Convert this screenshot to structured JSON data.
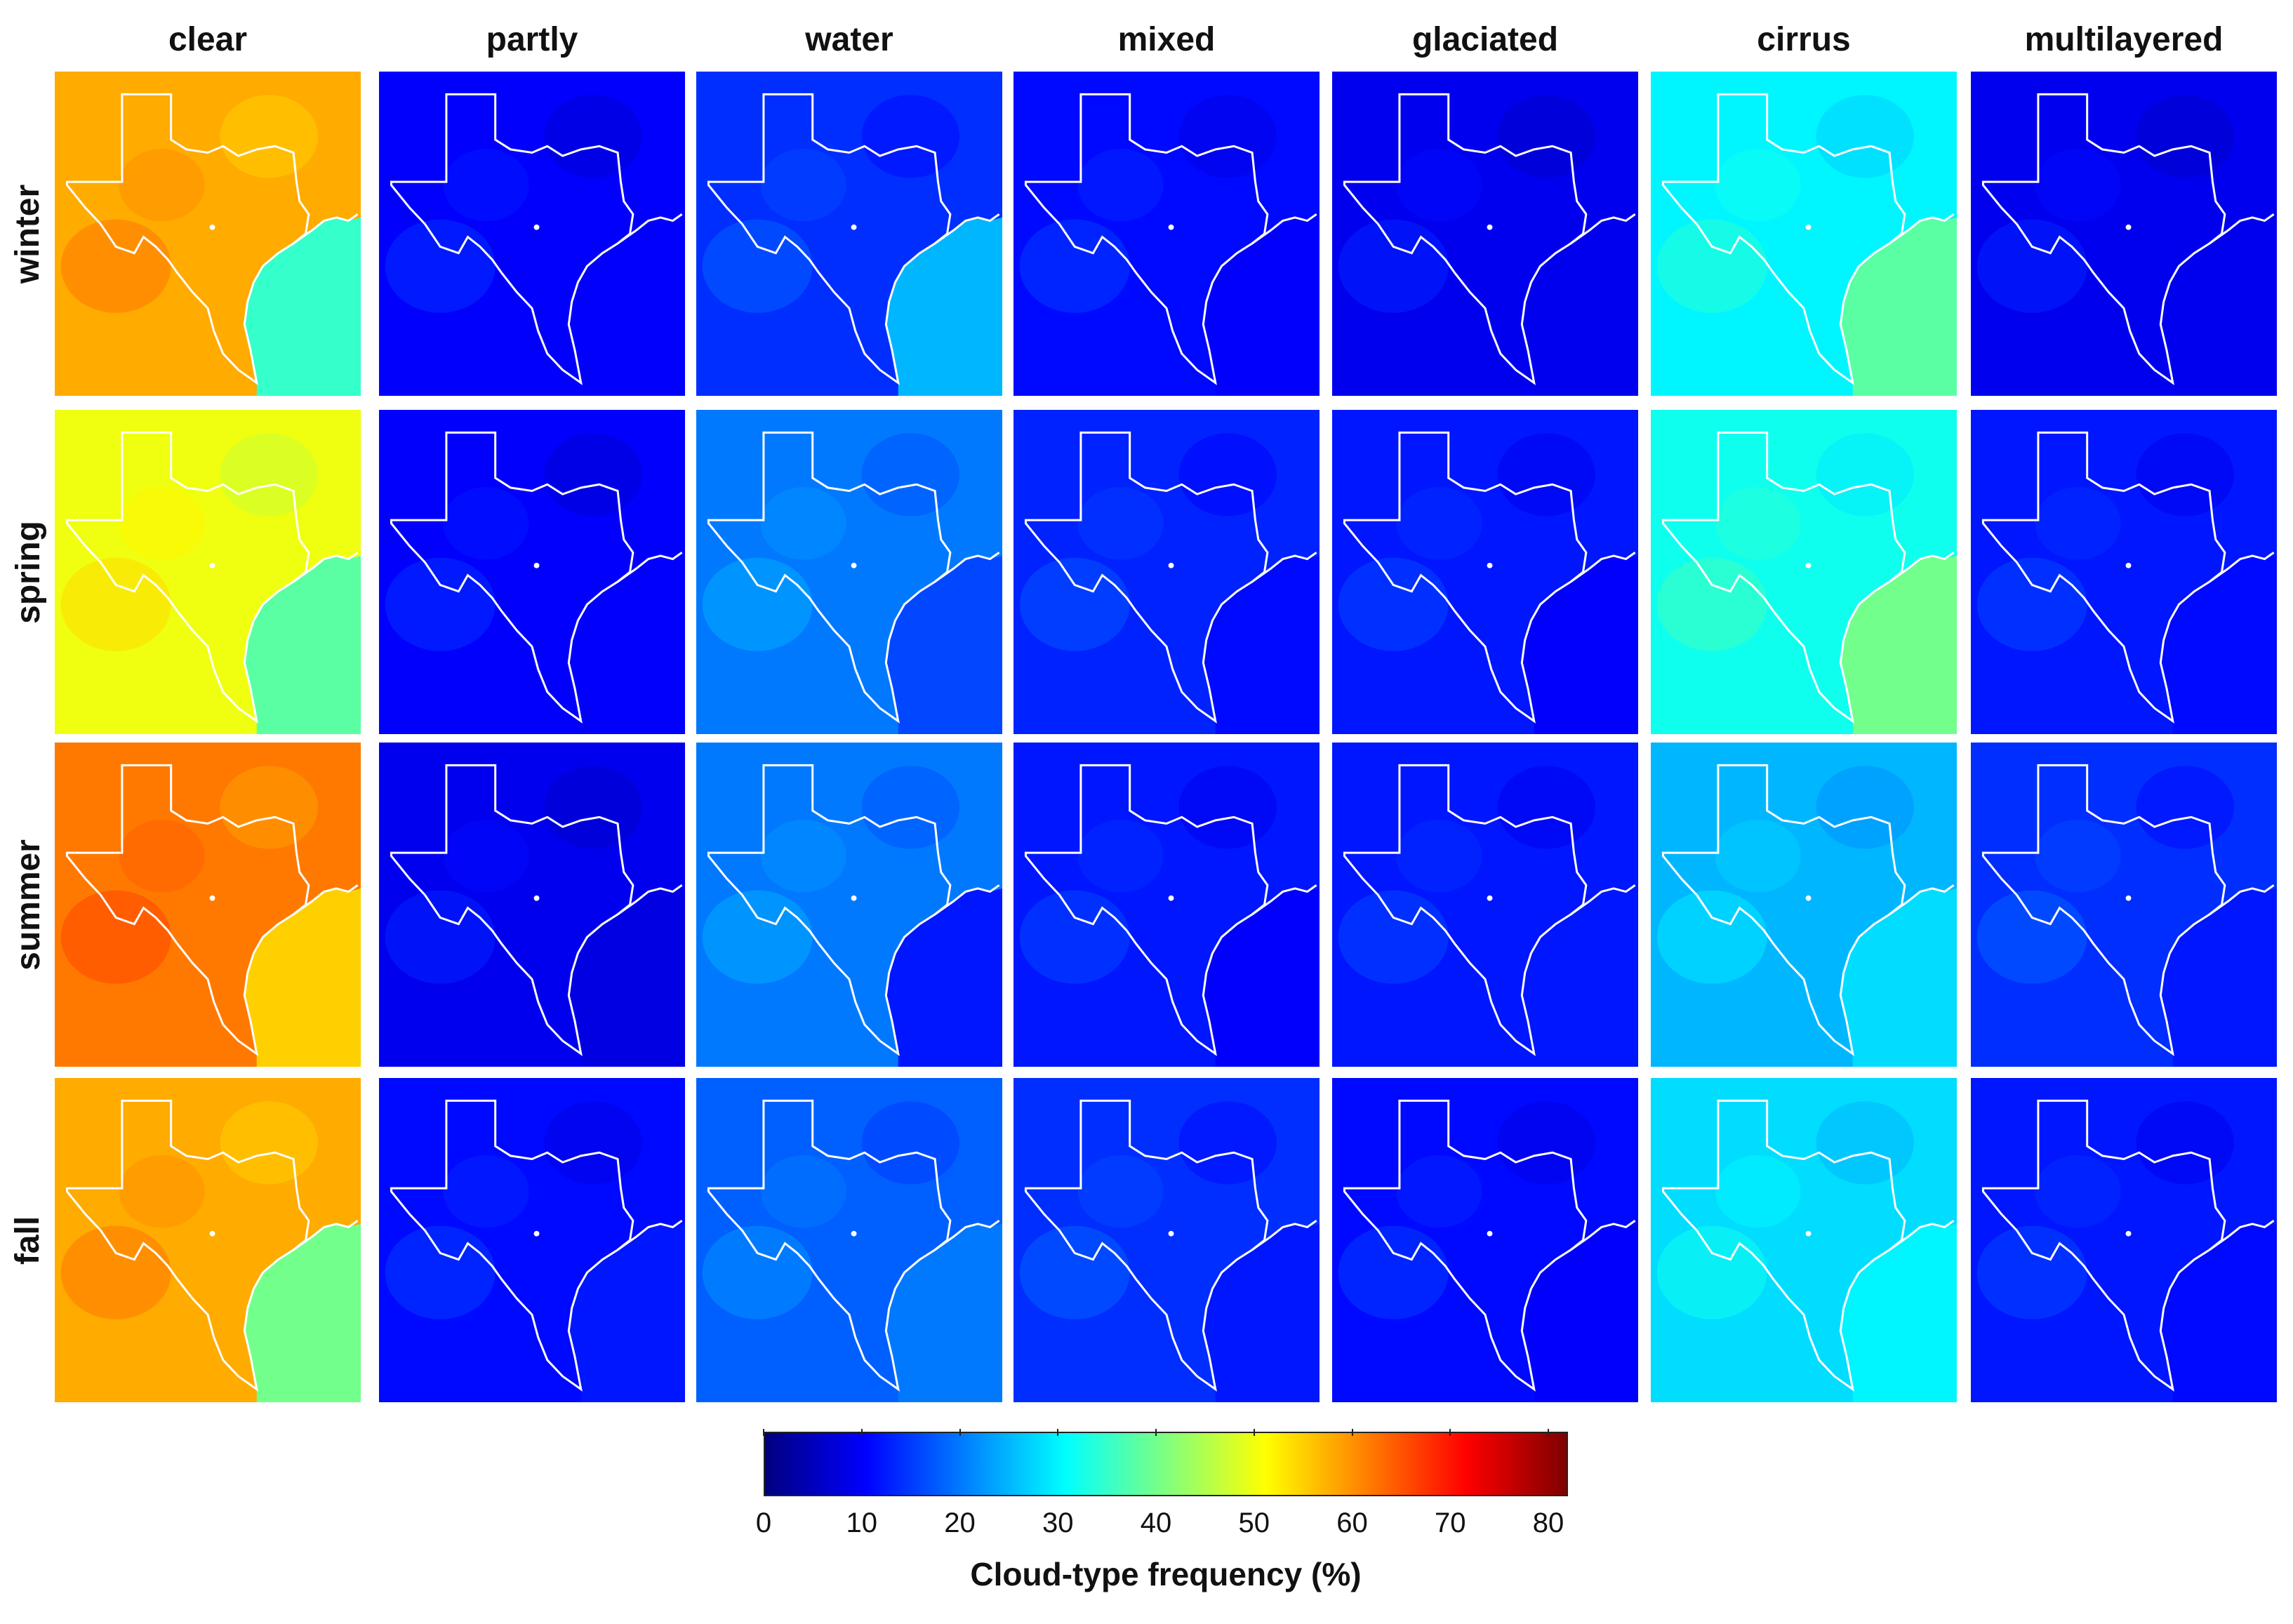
{
  "columns": [
    {
      "key": "clear",
      "label": "clear"
    },
    {
      "key": "partly",
      "label": "partly"
    },
    {
      "key": "water",
      "label": "water"
    },
    {
      "key": "mixed",
      "label": "mixed"
    },
    {
      "key": "glaciated",
      "label": "glaciated"
    },
    {
      "key": "cirrus",
      "label": "cirrus"
    },
    {
      "key": "multilayered",
      "label": "multilayered"
    }
  ],
  "rows": [
    {
      "key": "winter",
      "label": "winter"
    },
    {
      "key": "spring",
      "label": "spring"
    },
    {
      "key": "summer",
      "label": "summer"
    },
    {
      "key": "fall",
      "label": "fall"
    }
  ],
  "colorbar": {
    "label": "Cloud-type frequency (%)",
    "min": 0,
    "max": 82,
    "ticks": [
      "0",
      "10",
      "20",
      "30",
      "40",
      "50",
      "60",
      "70",
      "80"
    ],
    "colormap": "jet",
    "colors": [
      "#00007f",
      "#0000ff",
      "#007fff",
      "#00ffff",
      "#7fff7f",
      "#ffff00",
      "#ff7f00",
      "#ff0000",
      "#7f0000"
    ]
  },
  "approx_frequency_percent": {
    "clear": {
      "winter": {
        "land": 58,
        "gulf": 35
      },
      "spring": {
        "land": 50,
        "gulf": 38
      },
      "summer": {
        "land": 62,
        "gulf": 55
      },
      "fall": {
        "land": 58,
        "gulf": 40
      }
    },
    "partly": {
      "winter": {
        "land": 10,
        "gulf": 10
      },
      "spring": {
        "land": 10,
        "gulf": 10
      },
      "summer": {
        "land": 9,
        "gulf": 8
      },
      "fall": {
        "land": 11,
        "gulf": 12
      }
    },
    "water": {
      "winter": {
        "land": 14,
        "gulf": 25
      },
      "spring": {
        "land": 20,
        "gulf": 16
      },
      "summer": {
        "land": 20,
        "gulf": 12
      },
      "fall": {
        "land": 18,
        "gulf": 20
      }
    },
    "mixed": {
      "winter": {
        "land": 11,
        "gulf": 10
      },
      "spring": {
        "land": 13,
        "gulf": 11
      },
      "summer": {
        "land": 12,
        "gulf": 10
      },
      "fall": {
        "land": 14,
        "gulf": 12
      }
    },
    "glaciated": {
      "winter": {
        "land": 9,
        "gulf": 9
      },
      "spring": {
        "land": 12,
        "gulf": 10
      },
      "summer": {
        "land": 12,
        "gulf": 12
      },
      "fall": {
        "land": 11,
        "gulf": 10
      }
    },
    "cirrus": {
      "winter": {
        "land": 30,
        "gulf": 38
      },
      "spring": {
        "land": 32,
        "gulf": 40
      },
      "summer": {
        "land": 25,
        "gulf": 28
      },
      "fall": {
        "land": 28,
        "gulf": 30
      }
    },
    "multilayered": {
      "winter": {
        "land": 9,
        "gulf": 9
      },
      "spring": {
        "land": 12,
        "gulf": 11
      },
      "summer": {
        "land": 14,
        "gulf": 12
      },
      "fall": {
        "land": 12,
        "gulf": 11
      }
    }
  },
  "outline_color": "#ffffff",
  "marker": "city-dot"
}
